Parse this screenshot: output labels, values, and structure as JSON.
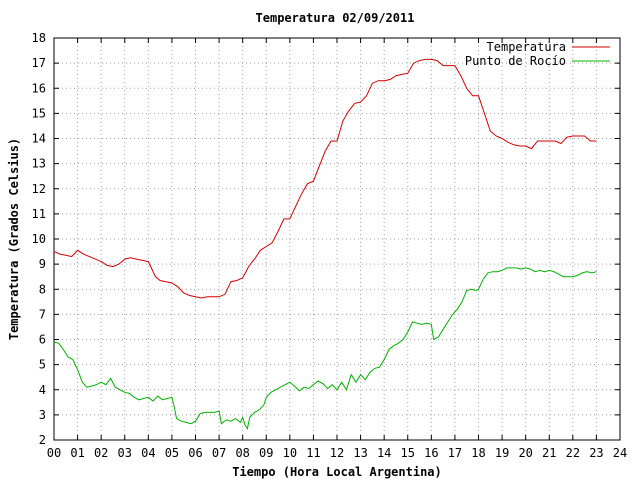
{
  "chart_data": {
    "type": "line",
    "title": "Temperatura 02/09/2011",
    "xlabel": "Tiempo (Hora Local Argentina)",
    "ylabel": "Temperatura (Grados Celsius)",
    "xlim": [
      0,
      24
    ],
    "ylim": [
      2,
      18
    ],
    "x_ticks": [
      "00",
      "01",
      "02",
      "03",
      "04",
      "05",
      "06",
      "07",
      "08",
      "09",
      "10",
      "11",
      "12",
      "13",
      "14",
      "15",
      "16",
      "17",
      "18",
      "19",
      "20",
      "21",
      "22",
      "23",
      "24"
    ],
    "y_ticks": [
      "2",
      "3",
      "4",
      "5",
      "6",
      "7",
      "8",
      "9",
      "10",
      "11",
      "12",
      "13",
      "14",
      "15",
      "16",
      "17",
      "18"
    ],
    "grid": true,
    "legend_position": "top-right",
    "series": [
      {
        "name": "Temperatura",
        "color": "#d00000",
        "points": [
          [
            0.0,
            9.5
          ],
          [
            0.25,
            9.4
          ],
          [
            0.5,
            9.35
          ],
          [
            0.75,
            9.3
          ],
          [
            1.0,
            9.55
          ],
          [
            1.25,
            9.4
          ],
          [
            1.5,
            9.3
          ],
          [
            1.75,
            9.2
          ],
          [
            2.0,
            9.1
          ],
          [
            2.25,
            8.95
          ],
          [
            2.5,
            8.9
          ],
          [
            2.75,
            9.0
          ],
          [
            3.0,
            9.2
          ],
          [
            3.25,
            9.25
          ],
          [
            3.5,
            9.2
          ],
          [
            3.75,
            9.15
          ],
          [
            4.0,
            9.1
          ],
          [
            4.15,
            8.8
          ],
          [
            4.3,
            8.5
          ],
          [
            4.5,
            8.35
          ],
          [
            4.75,
            8.3
          ],
          [
            5.0,
            8.25
          ],
          [
            5.25,
            8.1
          ],
          [
            5.5,
            7.85
          ],
          [
            5.75,
            7.75
          ],
          [
            6.0,
            7.7
          ],
          [
            6.25,
            7.65
          ],
          [
            6.5,
            7.7
          ],
          [
            7.0,
            7.7
          ],
          [
            7.25,
            7.8
          ],
          [
            7.5,
            8.3
          ],
          [
            7.75,
            8.35
          ],
          [
            8.0,
            8.45
          ],
          [
            8.25,
            8.9
          ],
          [
            8.5,
            9.2
          ],
          [
            8.75,
            9.55
          ],
          [
            9.0,
            9.7
          ],
          [
            9.25,
            9.85
          ],
          [
            9.5,
            10.3
          ],
          [
            9.75,
            10.8
          ],
          [
            10.0,
            10.8
          ],
          [
            10.25,
            11.3
          ],
          [
            10.5,
            11.8
          ],
          [
            10.75,
            12.2
          ],
          [
            11.0,
            12.3
          ],
          [
            11.25,
            12.9
          ],
          [
            11.5,
            13.5
          ],
          [
            11.75,
            13.9
          ],
          [
            12.0,
            13.9
          ],
          [
            12.25,
            14.7
          ],
          [
            12.5,
            15.1
          ],
          [
            12.75,
            15.4
          ],
          [
            13.0,
            15.45
          ],
          [
            13.25,
            15.7
          ],
          [
            13.5,
            16.2
          ],
          [
            13.75,
            16.3
          ],
          [
            14.0,
            16.3
          ],
          [
            14.25,
            16.35
          ],
          [
            14.5,
            16.5
          ],
          [
            14.75,
            16.55
          ],
          [
            15.0,
            16.6
          ],
          [
            15.25,
            17.0
          ],
          [
            15.5,
            17.1
          ],
          [
            15.75,
            17.15
          ],
          [
            16.0,
            17.15
          ],
          [
            16.25,
            17.1
          ],
          [
            16.5,
            16.9
          ],
          [
            17.0,
            16.9
          ],
          [
            17.25,
            16.5
          ],
          [
            17.5,
            16.0
          ],
          [
            17.75,
            15.7
          ],
          [
            18.0,
            15.7
          ],
          [
            18.25,
            15.0
          ],
          [
            18.5,
            14.3
          ],
          [
            18.75,
            14.1
          ],
          [
            19.0,
            14.0
          ],
          [
            19.25,
            13.85
          ],
          [
            19.5,
            13.75
          ],
          [
            19.75,
            13.7
          ],
          [
            20.0,
            13.7
          ],
          [
            20.25,
            13.6
          ],
          [
            20.5,
            13.9
          ],
          [
            20.75,
            13.9
          ],
          [
            21.0,
            13.9
          ],
          [
            21.25,
            13.9
          ],
          [
            21.5,
            13.8
          ],
          [
            21.75,
            14.05
          ],
          [
            22.0,
            14.1
          ],
          [
            22.25,
            14.1
          ],
          [
            22.5,
            14.1
          ],
          [
            22.75,
            13.9
          ],
          [
            23.0,
            13.9
          ]
        ]
      },
      {
        "name": "Punto de Rocío",
        "color": "#00b000",
        "points": [
          [
            0.0,
            5.9
          ],
          [
            0.2,
            5.85
          ],
          [
            0.4,
            5.6
          ],
          [
            0.6,
            5.3
          ],
          [
            0.8,
            5.2
          ],
          [
            1.0,
            4.8
          ],
          [
            1.2,
            4.3
          ],
          [
            1.4,
            4.1
          ],
          [
            1.6,
            4.15
          ],
          [
            1.8,
            4.2
          ],
          [
            2.0,
            4.3
          ],
          [
            2.2,
            4.2
          ],
          [
            2.4,
            4.45
          ],
          [
            2.6,
            4.1
          ],
          [
            2.8,
            4.0
          ],
          [
            3.0,
            3.9
          ],
          [
            3.2,
            3.85
          ],
          [
            3.4,
            3.7
          ],
          [
            3.6,
            3.6
          ],
          [
            3.8,
            3.65
          ],
          [
            4.0,
            3.7
          ],
          [
            4.2,
            3.55
          ],
          [
            4.4,
            3.75
          ],
          [
            4.6,
            3.6
          ],
          [
            4.8,
            3.65
          ],
          [
            5.0,
            3.7
          ],
          [
            5.1,
            3.3
          ],
          [
            5.2,
            2.85
          ],
          [
            5.4,
            2.75
          ],
          [
            5.6,
            2.7
          ],
          [
            5.8,
            2.65
          ],
          [
            6.0,
            2.75
          ],
          [
            6.2,
            3.05
          ],
          [
            6.4,
            3.1
          ],
          [
            6.6,
            3.1
          ],
          [
            6.8,
            3.1
          ],
          [
            7.0,
            3.15
          ],
          [
            7.1,
            2.65
          ],
          [
            7.3,
            2.8
          ],
          [
            7.5,
            2.75
          ],
          [
            7.7,
            2.85
          ],
          [
            7.9,
            2.7
          ],
          [
            8.0,
            2.9
          ],
          [
            8.1,
            2.6
          ],
          [
            8.2,
            2.45
          ],
          [
            8.3,
            2.9
          ],
          [
            8.5,
            3.1
          ],
          [
            8.7,
            3.2
          ],
          [
            8.9,
            3.4
          ],
          [
            9.0,
            3.7
          ],
          [
            9.2,
            3.9
          ],
          [
            9.4,
            4.0
          ],
          [
            9.6,
            4.1
          ],
          [
            9.8,
            4.2
          ],
          [
            10.0,
            4.3
          ],
          [
            10.2,
            4.15
          ],
          [
            10.4,
            3.95
          ],
          [
            10.6,
            4.1
          ],
          [
            10.8,
            4.05
          ],
          [
            11.0,
            4.2
          ],
          [
            11.2,
            4.35
          ],
          [
            11.4,
            4.25
          ],
          [
            11.6,
            4.05
          ],
          [
            11.8,
            4.2
          ],
          [
            12.0,
            4.0
          ],
          [
            12.2,
            4.3
          ],
          [
            12.4,
            4.0
          ],
          [
            12.6,
            4.6
          ],
          [
            12.8,
            4.3
          ],
          [
            13.0,
            4.6
          ],
          [
            13.2,
            4.4
          ],
          [
            13.4,
            4.7
          ],
          [
            13.6,
            4.85
          ],
          [
            13.8,
            4.9
          ],
          [
            14.0,
            5.2
          ],
          [
            14.2,
            5.6
          ],
          [
            14.4,
            5.75
          ],
          [
            14.6,
            5.85
          ],
          [
            14.8,
            6.0
          ],
          [
            15.0,
            6.3
          ],
          [
            15.2,
            6.7
          ],
          [
            15.4,
            6.65
          ],
          [
            15.6,
            6.6
          ],
          [
            15.8,
            6.65
          ],
          [
            16.0,
            6.6
          ],
          [
            16.1,
            6.0
          ],
          [
            16.3,
            6.1
          ],
          [
            16.5,
            6.4
          ],
          [
            16.7,
            6.7
          ],
          [
            16.9,
            7.0
          ],
          [
            17.1,
            7.2
          ],
          [
            17.3,
            7.5
          ],
          [
            17.5,
            7.95
          ],
          [
            17.7,
            8.0
          ],
          [
            17.9,
            7.95
          ],
          [
            18.0,
            8.0
          ],
          [
            18.2,
            8.4
          ],
          [
            18.4,
            8.65
          ],
          [
            18.6,
            8.7
          ],
          [
            18.8,
            8.7
          ],
          [
            19.0,
            8.75
          ],
          [
            19.2,
            8.85
          ],
          [
            19.4,
            8.85
          ],
          [
            19.6,
            8.85
          ],
          [
            19.8,
            8.8
          ],
          [
            20.0,
            8.85
          ],
          [
            20.2,
            8.8
          ],
          [
            20.4,
            8.7
          ],
          [
            20.6,
            8.75
          ],
          [
            20.8,
            8.7
          ],
          [
            21.0,
            8.75
          ],
          [
            21.2,
            8.7
          ],
          [
            21.4,
            8.6
          ],
          [
            21.6,
            8.5
          ],
          [
            21.8,
            8.5
          ],
          [
            22.0,
            8.5
          ],
          [
            22.2,
            8.55
          ],
          [
            22.4,
            8.65
          ],
          [
            22.6,
            8.7
          ],
          [
            22.8,
            8.65
          ],
          [
            23.0,
            8.7
          ]
        ]
      }
    ]
  }
}
